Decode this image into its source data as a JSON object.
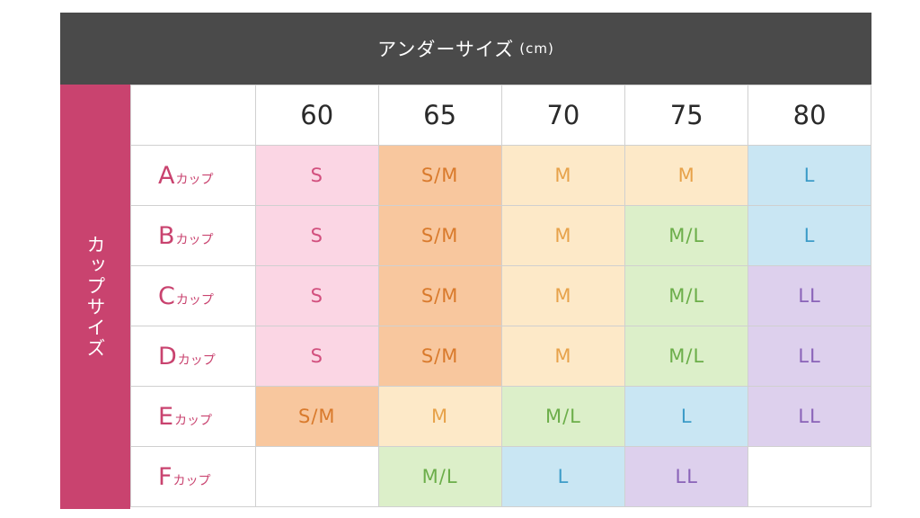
{
  "header": {
    "title": "アンダーサイズ",
    "unit": "(cm)"
  },
  "side_label": "カップサイズ",
  "columns": [
    "60",
    "65",
    "70",
    "75",
    "80"
  ],
  "cup_suffix": "カップ",
  "rows": [
    {
      "cup": "A",
      "sizes": [
        "S",
        "S/M",
        "M",
        "M",
        "L"
      ]
    },
    {
      "cup": "B",
      "sizes": [
        "S",
        "S/M",
        "M",
        "M/L",
        "L"
      ]
    },
    {
      "cup": "C",
      "sizes": [
        "S",
        "S/M",
        "M",
        "M/L",
        "LL"
      ]
    },
    {
      "cup": "D",
      "sizes": [
        "S",
        "S/M",
        "M",
        "M/L",
        "LL"
      ]
    },
    {
      "cup": "E",
      "sizes": [
        "S/M",
        "M",
        "M/L",
        "L",
        "LL"
      ]
    },
    {
      "cup": "F",
      "sizes": [
        "",
        "M/L",
        "L",
        "LL",
        ""
      ]
    }
  ],
  "colors": {
    "S": {
      "bg": "#fbd6e4",
      "fg": "#d2507e"
    },
    "S/M": {
      "bg": "#f8c79e",
      "fg": "#d97a2c"
    },
    "M": {
      "bg": "#fde9c8",
      "fg": "#e7a24a"
    },
    "M/L": {
      "bg": "#dcefc9",
      "fg": "#6cae4a"
    },
    "L": {
      "bg": "#c9e6f3",
      "fg": "#3d9cc8"
    },
    "LL": {
      "bg": "#ddd0ed",
      "fg": "#8a63b8"
    },
    "header_bg": "#4a4a4a",
    "side_bg": "#c9436f"
  }
}
